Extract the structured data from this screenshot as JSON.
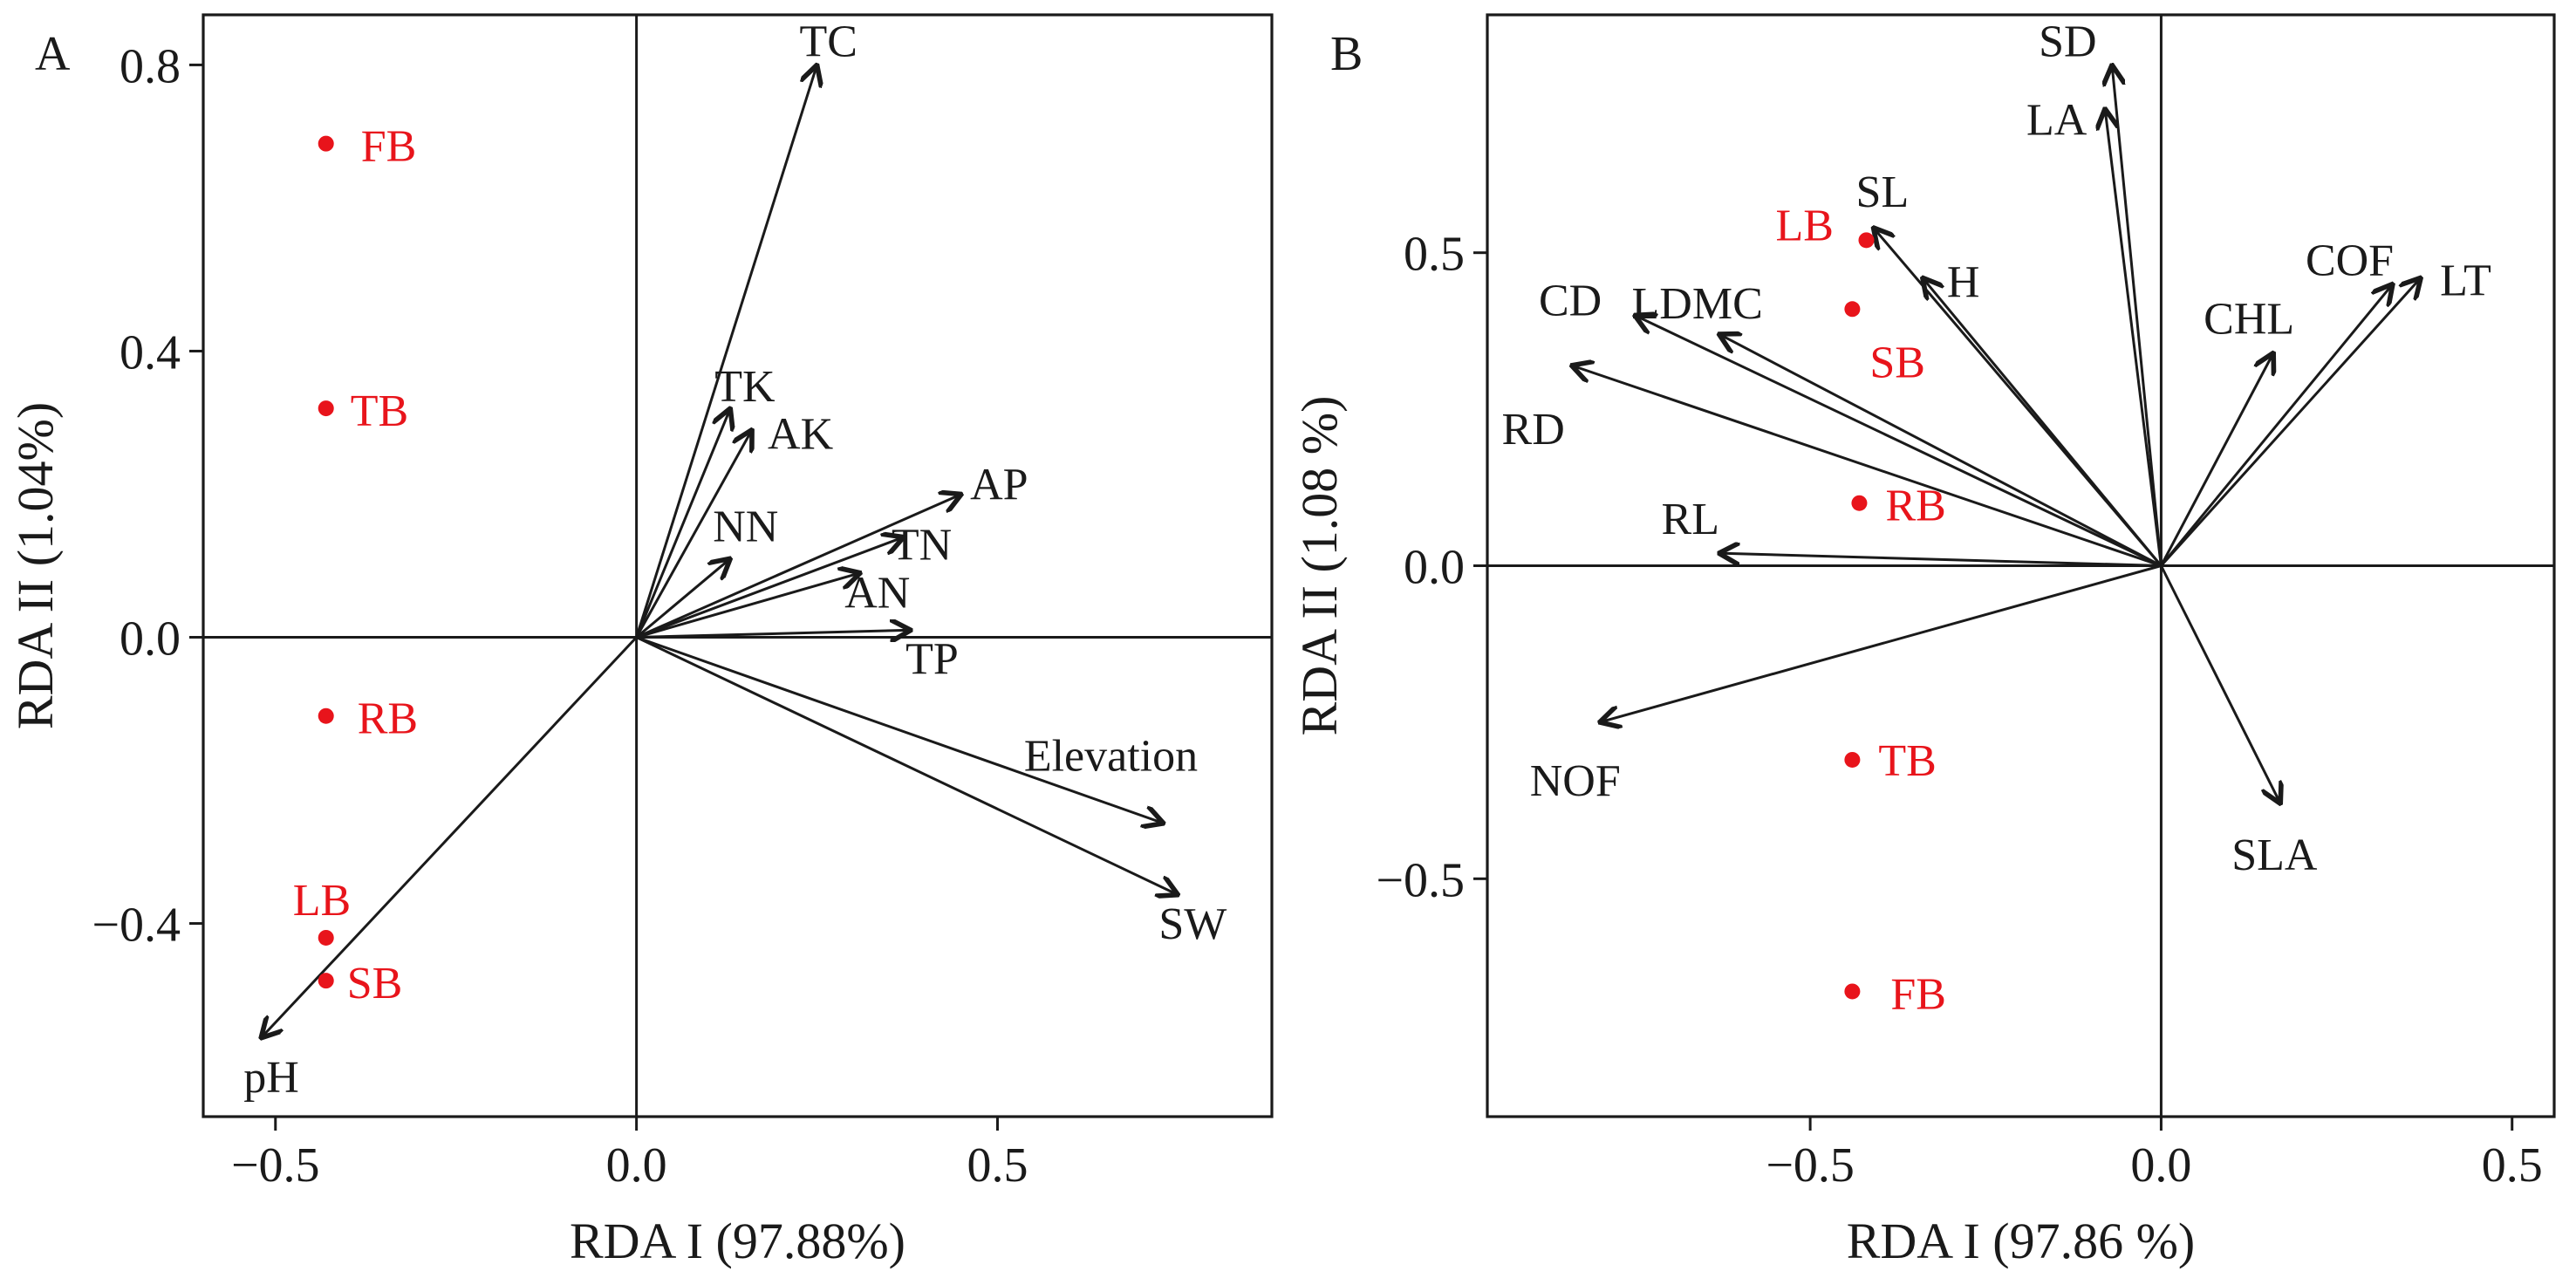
{
  "colors": {
    "axis": "#1a1a1a",
    "site_label": "#e8141b",
    "site_point": "#e8141b",
    "arrow": "#1a1a1a"
  },
  "chart_data": [
    {
      "type": "scatter",
      "subtype": "rda-biplot",
      "panel_label": "A",
      "xlabel": "RDA I (97.88%)",
      "ylabel": "RDA II (1.04%)",
      "xlim": [
        -0.6,
        0.88
      ],
      "ylim": [
        -0.67,
        0.87
      ],
      "xticks": [
        -0.5,
        0.0,
        0.5
      ],
      "xtick_labels": [
        "−0.5",
        "0.0",
        "0.5"
      ],
      "yticks": [
        -0.4,
        0.0,
        0.4,
        0.8
      ],
      "ytick_labels": [
        "−0.4",
        "0.0",
        "0.4",
        "0.8"
      ],
      "sites": [
        {
          "name": "FB",
          "x": -0.43,
          "y": 0.69,
          "label_side": "right"
        },
        {
          "name": "TB",
          "x": -0.43,
          "y": 0.32,
          "label_side": "right"
        },
        {
          "name": "RB",
          "x": -0.43,
          "y": -0.11,
          "label_side": "right"
        },
        {
          "name": "LB",
          "x": -0.43,
          "y": -0.42,
          "label_side": "above"
        },
        {
          "name": "SB",
          "x": -0.43,
          "y": -0.48,
          "label_side": "right"
        }
      ],
      "vectors": [
        {
          "name": "TC",
          "x": 0.25,
          "y": 0.8
        },
        {
          "name": "TK",
          "x": 0.13,
          "y": 0.32
        },
        {
          "name": "AK",
          "x": 0.16,
          "y": 0.29
        },
        {
          "name": "NN",
          "x": 0.13,
          "y": 0.11
        },
        {
          "name": "AP",
          "x": 0.45,
          "y": 0.2
        },
        {
          "name": "TN",
          "x": 0.37,
          "y": 0.14
        },
        {
          "name": "AN",
          "x": 0.31,
          "y": 0.09
        },
        {
          "name": "TP",
          "x": 0.38,
          "y": 0.01
        },
        {
          "name": "Elevation",
          "x": 0.73,
          "y": -0.26
        },
        {
          "name": "SW",
          "x": 0.75,
          "y": -0.36
        },
        {
          "name": "pH",
          "x": -0.52,
          "y": -0.56
        }
      ]
    },
    {
      "type": "scatter",
      "subtype": "rda-biplot",
      "panel_label": "B",
      "xlabel": "RDA I (97.86 %)",
      "ylabel": "RDA II (1.08 %)",
      "xlim": [
        -0.96,
        0.56
      ],
      "ylim": [
        -0.88,
        0.88
      ],
      "xticks": [
        -0.5,
        0.0,
        0.5
      ],
      "xtick_labels": [
        "−0.5",
        "0.0",
        "0.5"
      ],
      "yticks": [
        -0.5,
        0.0,
        0.5
      ],
      "ytick_labels": [
        "−0.5",
        "0.0",
        "0.5"
      ],
      "sites": [
        {
          "name": "LB",
          "x": -0.42,
          "y": 0.52,
          "label_side": "left"
        },
        {
          "name": "SB",
          "x": -0.44,
          "y": 0.41,
          "label_side": "below"
        },
        {
          "name": "RB",
          "x": -0.43,
          "y": 0.1,
          "label_side": "right"
        },
        {
          "name": "TB",
          "x": -0.44,
          "y": -0.31,
          "label_side": "right"
        },
        {
          "name": "FB",
          "x": -0.44,
          "y": -0.68,
          "label_side": "right"
        }
      ],
      "vectors": [
        {
          "name": "SD",
          "x": -0.07,
          "y": 0.8
        },
        {
          "name": "LA",
          "x": -0.08,
          "y": 0.73
        },
        {
          "name": "SL",
          "x": -0.41,
          "y": 0.54
        },
        {
          "name": "H",
          "x": -0.34,
          "y": 0.46
        },
        {
          "name": "LDMC",
          "x": -0.63,
          "y": 0.37
        },
        {
          "name": "CD",
          "x": -0.75,
          "y": 0.4
        },
        {
          "name": "RD",
          "x": -0.84,
          "y": 0.32
        },
        {
          "name": "RL",
          "x": -0.63,
          "y": 0.02
        },
        {
          "name": "NOF",
          "x": -0.8,
          "y": -0.25
        },
        {
          "name": "CHL",
          "x": 0.16,
          "y": 0.34
        },
        {
          "name": "COF",
          "x": 0.33,
          "y": 0.45
        },
        {
          "name": "LT",
          "x": 0.37,
          "y": 0.46
        },
        {
          "name": "SLA",
          "x": 0.17,
          "y": -0.38
        }
      ]
    }
  ]
}
